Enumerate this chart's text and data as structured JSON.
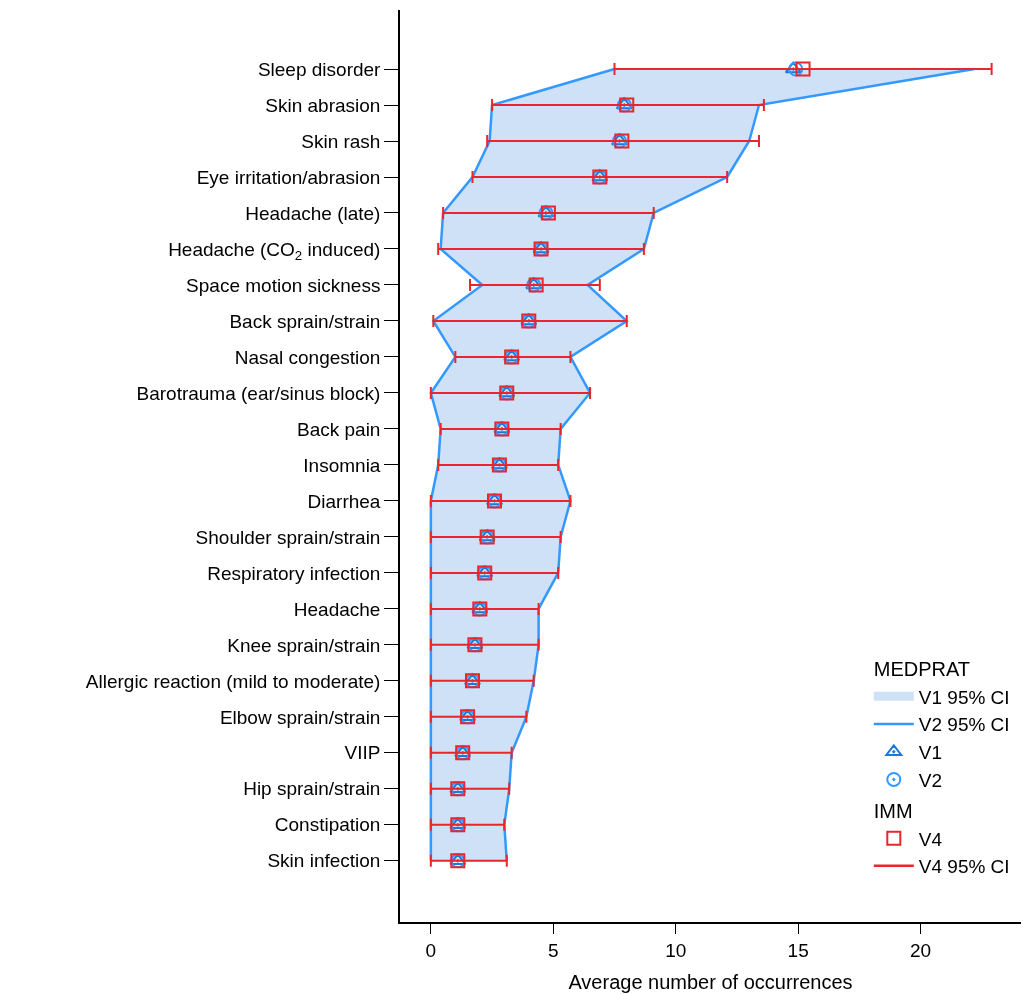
{
  "chart_data": {
    "type": "scatter",
    "orientation": "horizontal",
    "xlabel": "Average number of occurrences",
    "legend_title": [
      "MEDPRAT",
      "IMM"
    ],
    "annotations": [
      "V1 95% CI",
      "V4 95% CI"
    ],
    "categories": [
      "Sleep disorder",
      "Skin abrasion",
      "Skin rash",
      "Eye irritation/abrasion",
      "Headache (late)",
      "Headache (CO$_{2}$ induced)",
      "Space motion sickness",
      "Back sprain/strain",
      "Nasal congestion",
      "Barotrauma (ear/sinus block)",
      "Back pain",
      "Insomnia",
      "Diarrhea",
      "Shoulder sprain/strain",
      "Respiratory infection",
      "Headache",
      "Knee sprain/strain",
      "Allergic reaction (mild to moderate)",
      "Elbow sprain/strain",
      "VIIP",
      "Hip sprain/strain",
      "Constipation",
      "Skin infection"
    ],
    "xlim": [
      -1.26,
      24.1
    ],
    "xticks": [
      0,
      5,
      10,
      15,
      20
    ],
    "legend": "bottom right",
    "series": [
      {
        "name": "V1",
        "marker": "triangle",
        "color": "#1f78d8",
        "values": [
          14.8,
          7.9,
          7.7,
          6.9,
          4.7,
          4.5,
          4.2,
          4.0,
          3.3,
          3.1,
          2.9,
          2.8,
          2.6,
          2.3,
          2.2,
          2.0,
          1.8,
          1.7,
          1.5,
          1.3,
          1.1,
          1.1,
          1.1
        ],
        "lower": [
          7.5,
          2.5,
          2.4,
          1.7,
          0.5,
          0.4,
          2.1,
          0.1,
          1.0,
          0.0,
          0.4,
          0.3,
          0,
          0,
          0,
          0,
          0,
          0,
          0,
          0,
          0,
          0,
          0
        ],
        "upper": [
          22.2,
          13.4,
          13.0,
          12.1,
          9.1,
          8.7,
          6.4,
          8.0,
          5.7,
          6.5,
          5.3,
          5.2,
          5.7,
          5.3,
          5.2,
          4.4,
          4.4,
          4.2,
          3.9,
          3.3,
          3.2,
          3.0,
          3.1
        ]
      },
      {
        "name": "V2 95% CI",
        "type": "line",
        "marker": "none",
        "color": "#3399ff",
        "values": [
          22.2,
          13.4,
          13.0,
          12.1,
          9.1,
          8.7,
          6.4,
          8.0,
          5.7,
          6.5,
          5.3,
          5.2,
          5.7,
          5.3,
          5.2,
          4.4,
          4.4,
          4.2,
          3.9,
          3.3,
          3.2,
          3.0,
          3.1
        ]
      },
      {
        "type": "line",
        "marker": "none",
        "color": "#3399ff",
        "values": [
          7.5,
          2.5,
          2.4,
          1.7,
          0.5,
          0.4,
          2.1,
          0.1,
          1.0,
          0.0,
          0.4,
          0.3,
          0,
          0,
          0,
          0,
          0,
          0,
          0,
          0,
          0,
          0,
          0
        ]
      },
      {
        "name": "V2",
        "type": "scatter",
        "marker": "circle",
        "color": "#3399ff",
        "values": [
          14.9,
          7.9,
          7.7,
          6.9,
          4.7,
          4.5,
          4.2,
          4.0,
          3.3,
          3.1,
          2.9,
          2.8,
          2.6,
          2.3,
          2.2,
          2.0,
          1.8,
          1.7,
          1.5,
          1.3,
          1.1,
          1.1,
          1.1
        ]
      },
      {
        "name": "V4",
        "type": "scatter",
        "marker": "square",
        "color": "#e8262b",
        "values": [
          15.2,
          8.0,
          7.8,
          6.9,
          4.8,
          4.5,
          4.3,
          4.0,
          3.3,
          3.1,
          2.9,
          2.8,
          2.6,
          2.3,
          2.2,
          2.0,
          1.8,
          1.7,
          1.5,
          1.3,
          1.1,
          1.1,
          1.1
        ],
        "errors": [
          [
            7.5,
            22.9
          ],
          [
            2.5,
            13.6
          ],
          [
            2.3,
            13.4
          ],
          [
            1.7,
            12.1
          ],
          [
            0.5,
            9.1
          ],
          [
            0.3,
            8.7
          ],
          [
            1.6,
            6.9
          ],
          [
            0.1,
            8.0
          ],
          [
            1.0,
            5.7
          ],
          [
            0.0,
            6.5
          ],
          [
            0.4,
            5.3
          ],
          [
            0.3,
            5.2
          ],
          [
            0,
            5.7
          ],
          [
            0,
            5.3
          ],
          [
            0,
            5.2
          ],
          [
            0,
            4.4
          ],
          [
            0,
            4.4
          ],
          [
            0,
            4.2
          ],
          [
            0,
            3.9
          ],
          [
            0,
            3.3
          ],
          [
            0,
            3.2
          ],
          [
            0,
            3.0
          ],
          [
            0,
            3.1
          ]
        ]
      }
    ]
  }
}
